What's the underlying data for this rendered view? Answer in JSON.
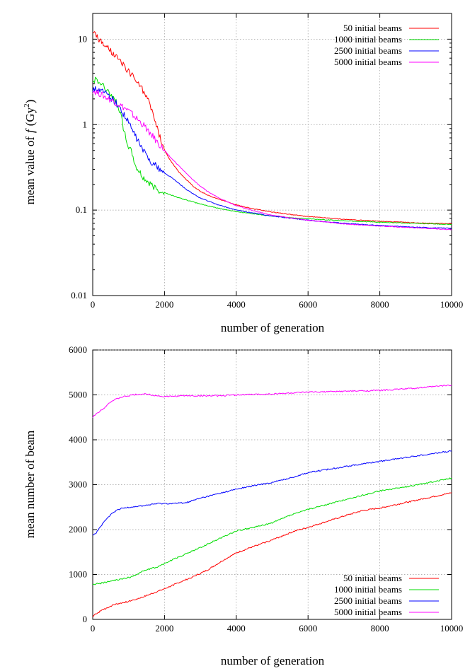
{
  "chart_data": [
    {
      "type": "line",
      "yscale": "log",
      "xlabel": "number of generation",
      "ylabel_prefix": "mean value of",
      "ylabel_var": "f",
      "ylabel_unit": "(Gy",
      "ylabel_unit_exp": "2",
      "ylabel_unit_close": ")",
      "xlim": [
        0,
        10000
      ],
      "ylim": [
        0.01,
        20
      ],
      "x_ticks": [
        0,
        2000,
        4000,
        6000,
        8000,
        10000
      ],
      "x_tick_labels": [
        "0",
        "2000",
        "4000",
        "6000",
        "8000",
        "10000"
      ],
      "y_ticks": [
        0.01,
        0.1,
        1,
        10
      ],
      "y_tick_labels": [
        "0.01",
        "0.1",
        "1",
        "10"
      ],
      "grid": true,
      "legend_position": "top-right",
      "series": [
        {
          "name": "50 initial beams",
          "color": "#ff0000",
          "points": [
            [
              0,
              12.5
            ],
            [
              200,
              9.5
            ],
            [
              400,
              8
            ],
            [
              600,
              6.5
            ],
            [
              800,
              5.2
            ],
            [
              1000,
              4.2
            ],
            [
              1200,
              3.3
            ],
            [
              1400,
              2.5
            ],
            [
              1600,
              1.7
            ],
            [
              1800,
              0.9
            ],
            [
              2000,
              0.5
            ],
            [
              2200,
              0.36
            ],
            [
              2400,
              0.28
            ],
            [
              2600,
              0.23
            ],
            [
              2800,
              0.19
            ],
            [
              3000,
              0.165
            ],
            [
              3200,
              0.15
            ],
            [
              3500,
              0.135
            ],
            [
              4000,
              0.115
            ],
            [
              4500,
              0.103
            ],
            [
              5000,
              0.095
            ],
            [
              5500,
              0.089
            ],
            [
              6000,
              0.084
            ],
            [
              7000,
              0.078
            ],
            [
              8000,
              0.074
            ],
            [
              9000,
              0.071
            ],
            [
              10000,
              0.069
            ]
          ]
        },
        {
          "name": "1000 initial beams",
          "color": "#00dd00",
          "points": [
            [
              0,
              3.5
            ],
            [
              150,
              3.2
            ],
            [
              300,
              2.8
            ],
            [
              500,
              2.3
            ],
            [
              700,
              1.7
            ],
            [
              800,
              1.2
            ],
            [
              900,
              0.75
            ],
            [
              1000,
              0.55
            ],
            [
              1100,
              0.45
            ],
            [
              1200,
              0.32
            ],
            [
              1400,
              0.24
            ],
            [
              1600,
              0.2
            ],
            [
              1800,
              0.175
            ],
            [
              2000,
              0.16
            ],
            [
              2500,
              0.135
            ],
            [
              3000,
              0.118
            ],
            [
              3500,
              0.105
            ],
            [
              4000,
              0.096
            ],
            [
              5000,
              0.085
            ],
            [
              6000,
              0.079
            ],
            [
              7000,
              0.075
            ],
            [
              8000,
              0.072
            ],
            [
              9000,
              0.07
            ],
            [
              10000,
              0.068
            ]
          ]
        },
        {
          "name": "2500 initial beams",
          "color": "#0000ff",
          "points": [
            [
              0,
              2.6
            ],
            [
              200,
              2.5
            ],
            [
              400,
              2.3
            ],
            [
              600,
              1.9
            ],
            [
              800,
              1.45
            ],
            [
              1000,
              1.05
            ],
            [
              1200,
              0.72
            ],
            [
              1400,
              0.5
            ],
            [
              1600,
              0.38
            ],
            [
              1800,
              0.32
            ],
            [
              2000,
              0.27
            ],
            [
              2200,
              0.24
            ],
            [
              2400,
              0.205
            ],
            [
              2600,
              0.175
            ],
            [
              2800,
              0.155
            ],
            [
              3000,
              0.138
            ],
            [
              3500,
              0.115
            ],
            [
              4000,
              0.1
            ],
            [
              4500,
              0.092
            ],
            [
              5000,
              0.085
            ],
            [
              6000,
              0.076
            ],
            [
              7000,
              0.07
            ],
            [
              8000,
              0.066
            ],
            [
              9000,
              0.063
            ],
            [
              10000,
              0.061
            ]
          ]
        },
        {
          "name": "5000 initial beams",
          "color": "#ff00ff",
          "points": [
            [
              0,
              2.5
            ],
            [
              200,
              2.3
            ],
            [
              400,
              2.05
            ],
            [
              600,
              1.85
            ],
            [
              800,
              1.65
            ],
            [
              1000,
              1.45
            ],
            [
              1200,
              1.2
            ],
            [
              1400,
              1.0
            ],
            [
              1600,
              0.8
            ],
            [
              1800,
              0.62
            ],
            [
              2000,
              0.5
            ],
            [
              2200,
              0.4
            ],
            [
              2400,
              0.33
            ],
            [
              2600,
              0.27
            ],
            [
              2800,
              0.225
            ],
            [
              3000,
              0.19
            ],
            [
              3200,
              0.165
            ],
            [
              3500,
              0.14
            ],
            [
              4000,
              0.113
            ],
            [
              4500,
              0.098
            ],
            [
              5000,
              0.087
            ],
            [
              6000,
              0.076
            ],
            [
              7000,
              0.069
            ],
            [
              8000,
              0.065
            ],
            [
              9000,
              0.062
            ],
            [
              10000,
              0.059
            ]
          ]
        }
      ]
    },
    {
      "type": "line",
      "yscale": "linear",
      "xlabel": "number of generation",
      "ylabel": "mean number of beam",
      "xlim": [
        0,
        10000
      ],
      "ylim": [
        0,
        6000
      ],
      "x_ticks": [
        0,
        2000,
        4000,
        6000,
        8000,
        10000
      ],
      "x_tick_labels": [
        "0",
        "2000",
        "4000",
        "6000",
        "8000",
        "10000"
      ],
      "y_ticks": [
        0,
        1000,
        2000,
        3000,
        4000,
        5000,
        6000
      ],
      "y_tick_labels": [
        "0",
        "1000",
        "2000",
        "3000",
        "4000",
        "5000",
        "6000"
      ],
      "grid": true,
      "legend_position": "bottom-right",
      "series": [
        {
          "name": "50 initial beams",
          "color": "#ff0000",
          "points": [
            [
              0,
              50
            ],
            [
              100,
              130
            ],
            [
              300,
              220
            ],
            [
              600,
              330
            ],
            [
              1000,
              400
            ],
            [
              1400,
              500
            ],
            [
              1800,
              620
            ],
            [
              2000,
              680
            ],
            [
              2400,
              820
            ],
            [
              2800,
              950
            ],
            [
              3200,
              1100
            ],
            [
              3600,
              1300
            ],
            [
              4000,
              1480
            ],
            [
              4400,
              1600
            ],
            [
              5000,
              1770
            ],
            [
              5600,
              1960
            ],
            [
              6000,
              2050
            ],
            [
              7000,
              2300
            ],
            [
              7500,
              2420
            ],
            [
              8000,
              2480
            ],
            [
              9000,
              2650
            ],
            [
              10000,
              2820
            ]
          ]
        },
        {
          "name": "1000 initial beams",
          "color": "#00dd00",
          "points": [
            [
              0,
              780
            ],
            [
              200,
              800
            ],
            [
              500,
              850
            ],
            [
              800,
              900
            ],
            [
              1100,
              950
            ],
            [
              1400,
              1080
            ],
            [
              1800,
              1170
            ],
            [
              2200,
              1320
            ],
            [
              2600,
              1460
            ],
            [
              3000,
              1600
            ],
            [
              3500,
              1790
            ],
            [
              4000,
              1970
            ],
            [
              4500,
              2050
            ],
            [
              5000,
              2150
            ],
            [
              5500,
              2320
            ],
            [
              6000,
              2450
            ],
            [
              7000,
              2660
            ],
            [
              8000,
              2860
            ],
            [
              9000,
              2990
            ],
            [
              10000,
              3150
            ]
          ]
        },
        {
          "name": "2500 initial beams",
          "color": "#0000ff",
          "points": [
            [
              0,
              1880
            ],
            [
              100,
              1930
            ],
            [
              200,
              2050
            ],
            [
              400,
              2250
            ],
            [
              600,
              2400
            ],
            [
              800,
              2470
            ],
            [
              1000,
              2500
            ],
            [
              1400,
              2530
            ],
            [
              1800,
              2580
            ],
            [
              2200,
              2580
            ],
            [
              2600,
              2600
            ],
            [
              3000,
              2700
            ],
            [
              3500,
              2800
            ],
            [
              4000,
              2900
            ],
            [
              4500,
              2980
            ],
            [
              5000,
              3050
            ],
            [
              5500,
              3150
            ],
            [
              6000,
              3270
            ],
            [
              7000,
              3400
            ],
            [
              8000,
              3520
            ],
            [
              9000,
              3640
            ],
            [
              10000,
              3750
            ]
          ]
        },
        {
          "name": "5000 initial beams",
          "color": "#ff00ff",
          "points": [
            [
              0,
              4500
            ],
            [
              100,
              4580
            ],
            [
              300,
              4700
            ],
            [
              500,
              4850
            ],
            [
              800,
              4950
            ],
            [
              1200,
              5010
            ],
            [
              1500,
              5020
            ],
            [
              1800,
              4980
            ],
            [
              2000,
              4960
            ],
            [
              2500,
              4980
            ],
            [
              3000,
              4980
            ],
            [
              3500,
              4980
            ],
            [
              4000,
              5000
            ],
            [
              4500,
              5010
            ],
            [
              5000,
              5020
            ],
            [
              5500,
              5040
            ],
            [
              6000,
              5060
            ],
            [
              7000,
              5080
            ],
            [
              8000,
              5100
            ],
            [
              9000,
              5150
            ],
            [
              10000,
              5220
            ]
          ]
        }
      ]
    }
  ]
}
